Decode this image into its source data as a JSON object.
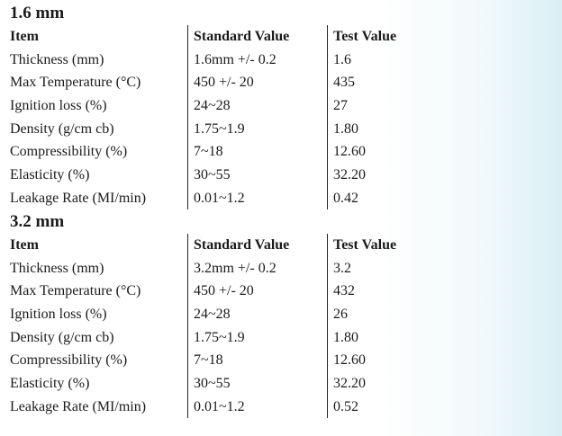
{
  "sections": [
    {
      "title": "1.6 mm",
      "headers": {
        "item": "Item",
        "standard": "Standard Value",
        "test": "Test Value"
      },
      "rows": [
        {
          "item": "Thickness (mm)",
          "standard": "1.6mm +/- 0.2",
          "test": "1.6"
        },
        {
          "item": "Max Temperature (°C)",
          "standard": "450 +/- 20",
          "test": "435"
        },
        {
          "item": "Ignition loss (%)",
          "standard": "24~28",
          "test": "27"
        },
        {
          "item": "Density (g/cm cb)",
          "standard": "1.75~1.9",
          "test": "1.80"
        },
        {
          "item": "Compressibility (%)",
          "standard": "7~18",
          "test": "12.60"
        },
        {
          "item": "Elasticity (%)",
          "standard": "30~55",
          "test": "32.20"
        },
        {
          "item": "Leakage Rate (MI/min)",
          "standard": "0.01~1.2",
          "test": "0.42"
        }
      ]
    },
    {
      "title": "3.2 mm",
      "headers": {
        "item": "Item",
        "standard": "Standard Value",
        "test": "Test Value"
      },
      "rows": [
        {
          "item": "Thickness (mm)",
          "standard": "3.2mm +/- 0.2",
          "test": "3.2"
        },
        {
          "item": "Max Temperature (°C)",
          "standard": "450 +/- 20",
          "test": "432"
        },
        {
          "item": "Ignition loss (%)",
          "standard": "24~28",
          "test": "26"
        },
        {
          "item": "Density (g/cm cb)",
          "standard": "1.75~1.9",
          "test": "1.80"
        },
        {
          "item": "Compressibility (%)",
          "standard": "7~18",
          "test": "12.60"
        },
        {
          "item": "Elasticity (%)",
          "standard": "30~55",
          "test": "32.20"
        },
        {
          "item": "Leakage Rate (MI/min)",
          "standard": "0.01~1.2",
          "test": "0.52"
        }
      ]
    }
  ]
}
